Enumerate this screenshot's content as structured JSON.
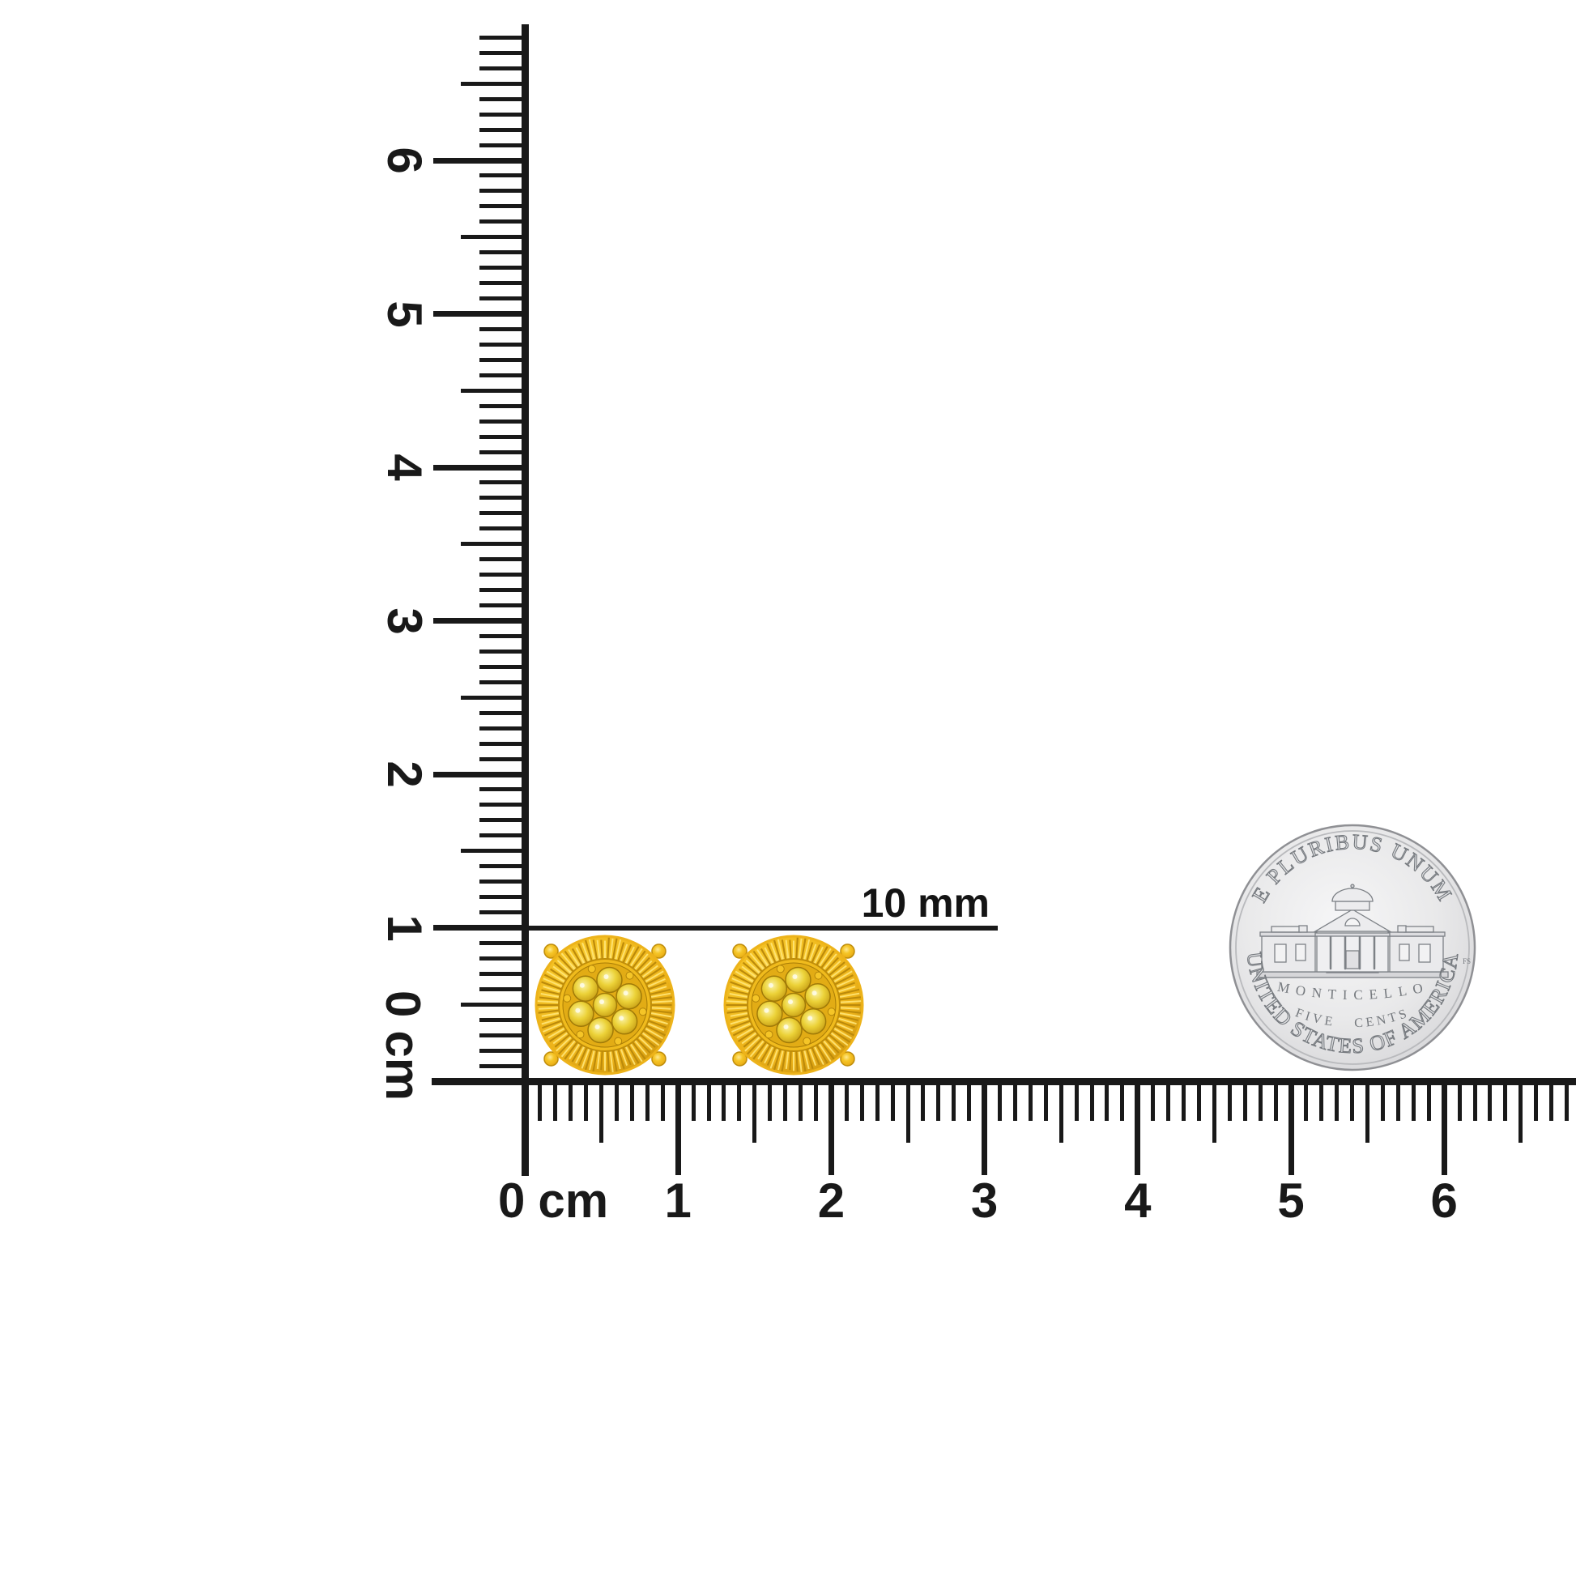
{
  "scene": {
    "kind": "product scale photograph",
    "background": "#ffffff"
  },
  "ruler": {
    "ink": "#191919",
    "zero_label": "0",
    "unit_label": "cm",
    "vertical_cm_labels": [
      "1",
      "2",
      "3",
      "4",
      "5",
      "6"
    ],
    "horizontal_cm_labels": [
      "1",
      "2",
      "3",
      "4",
      "5",
      "6"
    ]
  },
  "measurement": {
    "label": "10 mm"
  },
  "earrings": {
    "item": "pair of gold sunburst cluster stud earrings with yellow stones",
    "metal_light": "#ffe98f",
    "metal_base": "#f5c527",
    "metal_mid": "#edb31a",
    "metal_deep": "#c8910c",
    "ray_dark": "#bc8a0a",
    "ray_light": "#ffe678",
    "bezel_fill": "#f0bb1d",
    "stone_light": "#fbf3a6",
    "stone_mid": "#ecd238",
    "stone_dark": "#cfa91c",
    "stone_deep": "#8a6a05"
  },
  "coin": {
    "top_text": "E PLURIBUS UNUM",
    "building_label": "MONTICELLO",
    "denomination_text": "FIVE CENTS",
    "bottom_text": "UNITED STATES OF AMERICA",
    "designer_initials": "FS",
    "silver_light": "#f6f6f7",
    "silver_mid": "#e9e9ea",
    "silver_low": "#dcdcde",
    "silver_edge": "#c5c5c8",
    "rim_line": "#8f9094",
    "inner_rim_line": "#b9babd",
    "engrave_fill": "#e2e3e5",
    "engrave_line": "#75797e",
    "building_line": "#7d8186",
    "building_fill": "#eaeaec"
  }
}
